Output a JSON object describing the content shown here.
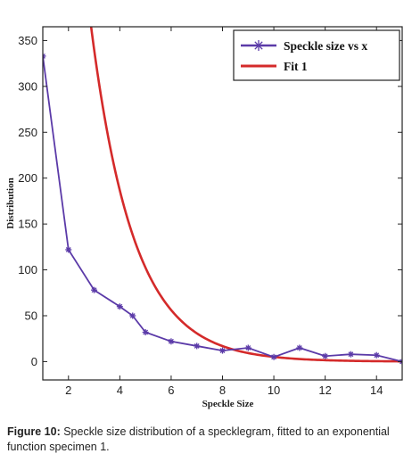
{
  "caption": {
    "label": "Figure 10:",
    "text": " Speckle size distribution of a specklegram, fitted to an exponential function specimen 1."
  },
  "chart_data": {
    "type": "line",
    "xlabel": "Speckle Size",
    "ylabel": "Distribution",
    "xlim": [
      1,
      15
    ],
    "ylim": [
      -20,
      365
    ],
    "xticks": [
      2,
      4,
      6,
      8,
      10,
      12,
      14
    ],
    "yticks": [
      0,
      50,
      100,
      150,
      200,
      250,
      300,
      350
    ],
    "grid": false,
    "legend_position": "top-right",
    "series": [
      {
        "name": "Speckle size vs x",
        "color": "#5b3aa8",
        "marker": "star",
        "x": [
          1,
          2,
          3,
          4,
          4.5,
          5,
          6,
          7,
          8,
          9,
          10,
          11,
          12,
          13,
          14,
          15
        ],
        "y": [
          333,
          122,
          78,
          60,
          50,
          32,
          22,
          17,
          12,
          15,
          5,
          15,
          6,
          8,
          7,
          0
        ]
      },
      {
        "name": "Fit 1",
        "color": "#d42a2a",
        "marker": "none",
        "fit": {
          "form": "a*exp(-b*x)",
          "a": 2057,
          "b": 0.6
        }
      }
    ]
  }
}
